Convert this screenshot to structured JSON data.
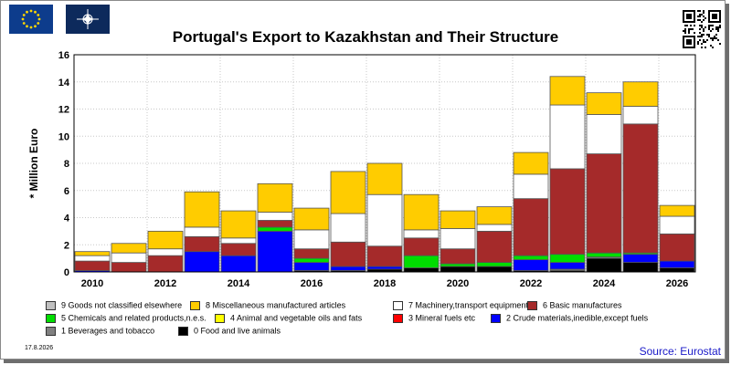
{
  "header": {
    "title": "Portugal's Export to Kazakhstan and Their Structure",
    "eu_flag_icon": "eu-flag-icon",
    "nato_flag_icon": "nato-flag-icon",
    "qr_icon": "qr-code-icon"
  },
  "footer": {
    "date": "17.8.2026",
    "source": "Source: Eurostat"
  },
  "chart_data": {
    "type": "bar",
    "stacked": true,
    "ylabel": "* Million Euro",
    "xlabel": "",
    "ylim": [
      0,
      16
    ],
    "yticks": [
      0,
      2,
      4,
      6,
      8,
      10,
      12,
      14,
      16
    ],
    "grid": true,
    "categories": [
      "2010",
      "2011",
      "2012",
      "2013",
      "2014",
      "2015",
      "2016",
      "2017",
      "2018",
      "2019",
      "2020",
      "2021",
      "2022",
      "2023",
      "2024",
      "2025",
      "2026"
    ],
    "xtick_labels": [
      "2010",
      "2012",
      "2014",
      "2016",
      "2018",
      "2020",
      "2022",
      "2024",
      "2026"
    ],
    "legend_position": "bottom",
    "series": [
      {
        "name": "0 Food and live animals",
        "color": "#000000",
        "values": [
          0,
          0,
          0,
          0,
          0,
          0,
          0.1,
          0.1,
          0.2,
          0.3,
          0.4,
          0.4,
          0.1,
          0.1,
          1.0,
          0.7,
          0.3
        ]
      },
      {
        "name": "1 Beverages and tobacco",
        "color": "#808080",
        "values": [
          0,
          0,
          0,
          0,
          0,
          0,
          0,
          0,
          0,
          0,
          0,
          0,
          0,
          0.1,
          0.1,
          0,
          0
        ]
      },
      {
        "name": "2 Crude materials,inedible,except fuels",
        "color": "#0000ff",
        "values": [
          0.1,
          0,
          0,
          1.5,
          1.2,
          3.0,
          0.6,
          0.3,
          0.2,
          0,
          0,
          0,
          0.8,
          0.5,
          0,
          0.6,
          0.5
        ]
      },
      {
        "name": "3 Mineral fuels etc",
        "color": "#ff0000",
        "values": [
          0,
          0,
          0,
          0,
          0,
          0,
          0,
          0,
          0,
          0,
          0,
          0,
          0,
          0,
          0,
          0,
          0
        ]
      },
      {
        "name": "4 Animal and vegetable oils and fats",
        "color": "#ffff00",
        "values": [
          0,
          0,
          0,
          0,
          0,
          0,
          0,
          0,
          0,
          0,
          0,
          0,
          0,
          0,
          0,
          0,
          0
        ]
      },
      {
        "name": "5 Chemicals and related products,n.e.s.",
        "color": "#00dd00",
        "values": [
          0,
          0,
          0,
          0,
          0,
          0.3,
          0.3,
          0,
          0,
          0.9,
          0.2,
          0.3,
          0.3,
          0.6,
          0.3,
          0.1,
          0
        ]
      },
      {
        "name": "6 Basic manufactures",
        "color": "#a52a2a",
        "values": [
          0.7,
          0.7,
          1.2,
          1.1,
          0.9,
          0.5,
          0.7,
          1.8,
          1.5,
          1.3,
          1.1,
          2.3,
          4.2,
          6.3,
          7.3,
          9.5,
          2.0
        ]
      },
      {
        "name": "7 Machinery,transport equipment",
        "color": "#ffffff",
        "values": [
          0.4,
          0.7,
          0.5,
          0.7,
          0.4,
          0.6,
          1.4,
          2.1,
          3.8,
          0.6,
          1.5,
          0.5,
          1.8,
          4.7,
          2.9,
          1.3,
          1.3
        ]
      },
      {
        "name": "8 Miscellaneous manufactured articles",
        "color": "#ffcc00",
        "values": [
          0.3,
          0.7,
          1.3,
          2.6,
          2.0,
          2.1,
          1.6,
          3.1,
          2.3,
          2.6,
          1.3,
          1.3,
          1.6,
          2.1,
          1.6,
          1.8,
          0.8
        ]
      },
      {
        "name": "9 Goods not classified elsewhere",
        "color": "#c0c0c0",
        "values": [
          0,
          0,
          0,
          0,
          0,
          0,
          0,
          0,
          0,
          0,
          0,
          0,
          0,
          0,
          0,
          0,
          0
        ]
      }
    ]
  }
}
